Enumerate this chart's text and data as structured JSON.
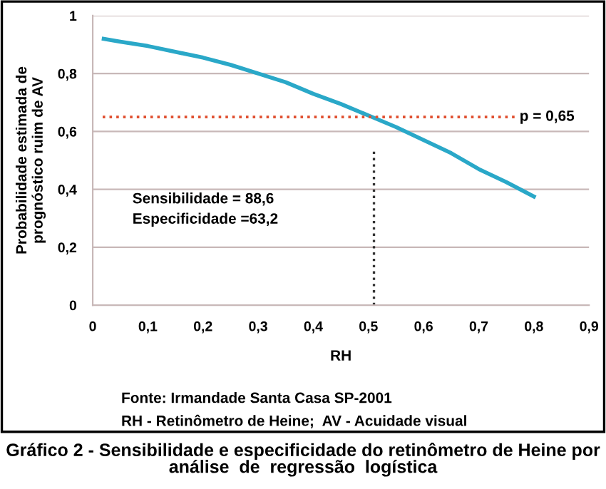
{
  "chart_data": {
    "type": "line",
    "title": "Gráfico 2 - Sensibilidade e especificidade do retinômetro de Heine por\nanálise  de  regressão  logística",
    "xlabel": "RH",
    "ylabel": "Probabilidade estimada de\nprognóstico ruim de AV",
    "series": [
      {
        "color": "#2aa8c8",
        "x": [
          0.02,
          0.05,
          0.1,
          0.15,
          0.2,
          0.25,
          0.3,
          0.35,
          0.4,
          0.45,
          0.5,
          0.55,
          0.6,
          0.65,
          0.7,
          0.75,
          0.8
        ],
        "values": [
          0.92,
          0.91,
          0.895,
          0.875,
          0.855,
          0.83,
          0.8,
          0.77,
          0.73,
          0.695,
          0.655,
          0.615,
          0.57,
          0.525,
          0.47,
          0.425,
          0.375
        ],
        "line_style": "solid"
      },
      {
        "color": "#333333",
        "x": [
          0.51,
          0.51
        ],
        "values": [
          0,
          0.54
        ],
        "line_style": "dotted"
      }
    ],
    "ref_lines": [
      {
        "axis": "y",
        "value": 0.65,
        "label": "p = 0,65",
        "color": "#e05030",
        "line_style": "dotted"
      }
    ],
    "annotations": [
      "Sensibilidade = 88,6\nEspecificidade =63,2",
      "Fonte: Irmandade Santa Casa SP-2001",
      "RH - Retinômetro de Heine;  AV - Acuidade visual"
    ],
    "xlim": [
      0,
      0.9
    ],
    "xticks": [
      0,
      {
        "value": 0.1,
        "label": "0,1"
      },
      {
        "value": 0.2,
        "label": "0,2"
      },
      {
        "value": 0.3,
        "label": "0,3"
      },
      {
        "value": 0.4,
        "label": "0,4"
      },
      {
        "value": 0.5,
        "label": "0,5"
      },
      {
        "value": 0.6,
        "label": "0,6"
      },
      {
        "value": 0.7,
        "label": "0,7"
      },
      {
        "value": 0.8,
        "label": "0,8"
      },
      {
        "value": 0.9,
        "label": "0,9"
      }
    ],
    "ylim": [
      0,
      1
    ],
    "yticks": [
      0,
      {
        "value": 0.2,
        "label": "0,2"
      },
      {
        "value": 0.4,
        "label": "0,4"
      },
      {
        "value": 0.6,
        "label": "0,6"
      },
      {
        "value": 0.8,
        "label": "0,8"
      },
      1
    ],
    "grid": "y",
    "legend": false
  }
}
